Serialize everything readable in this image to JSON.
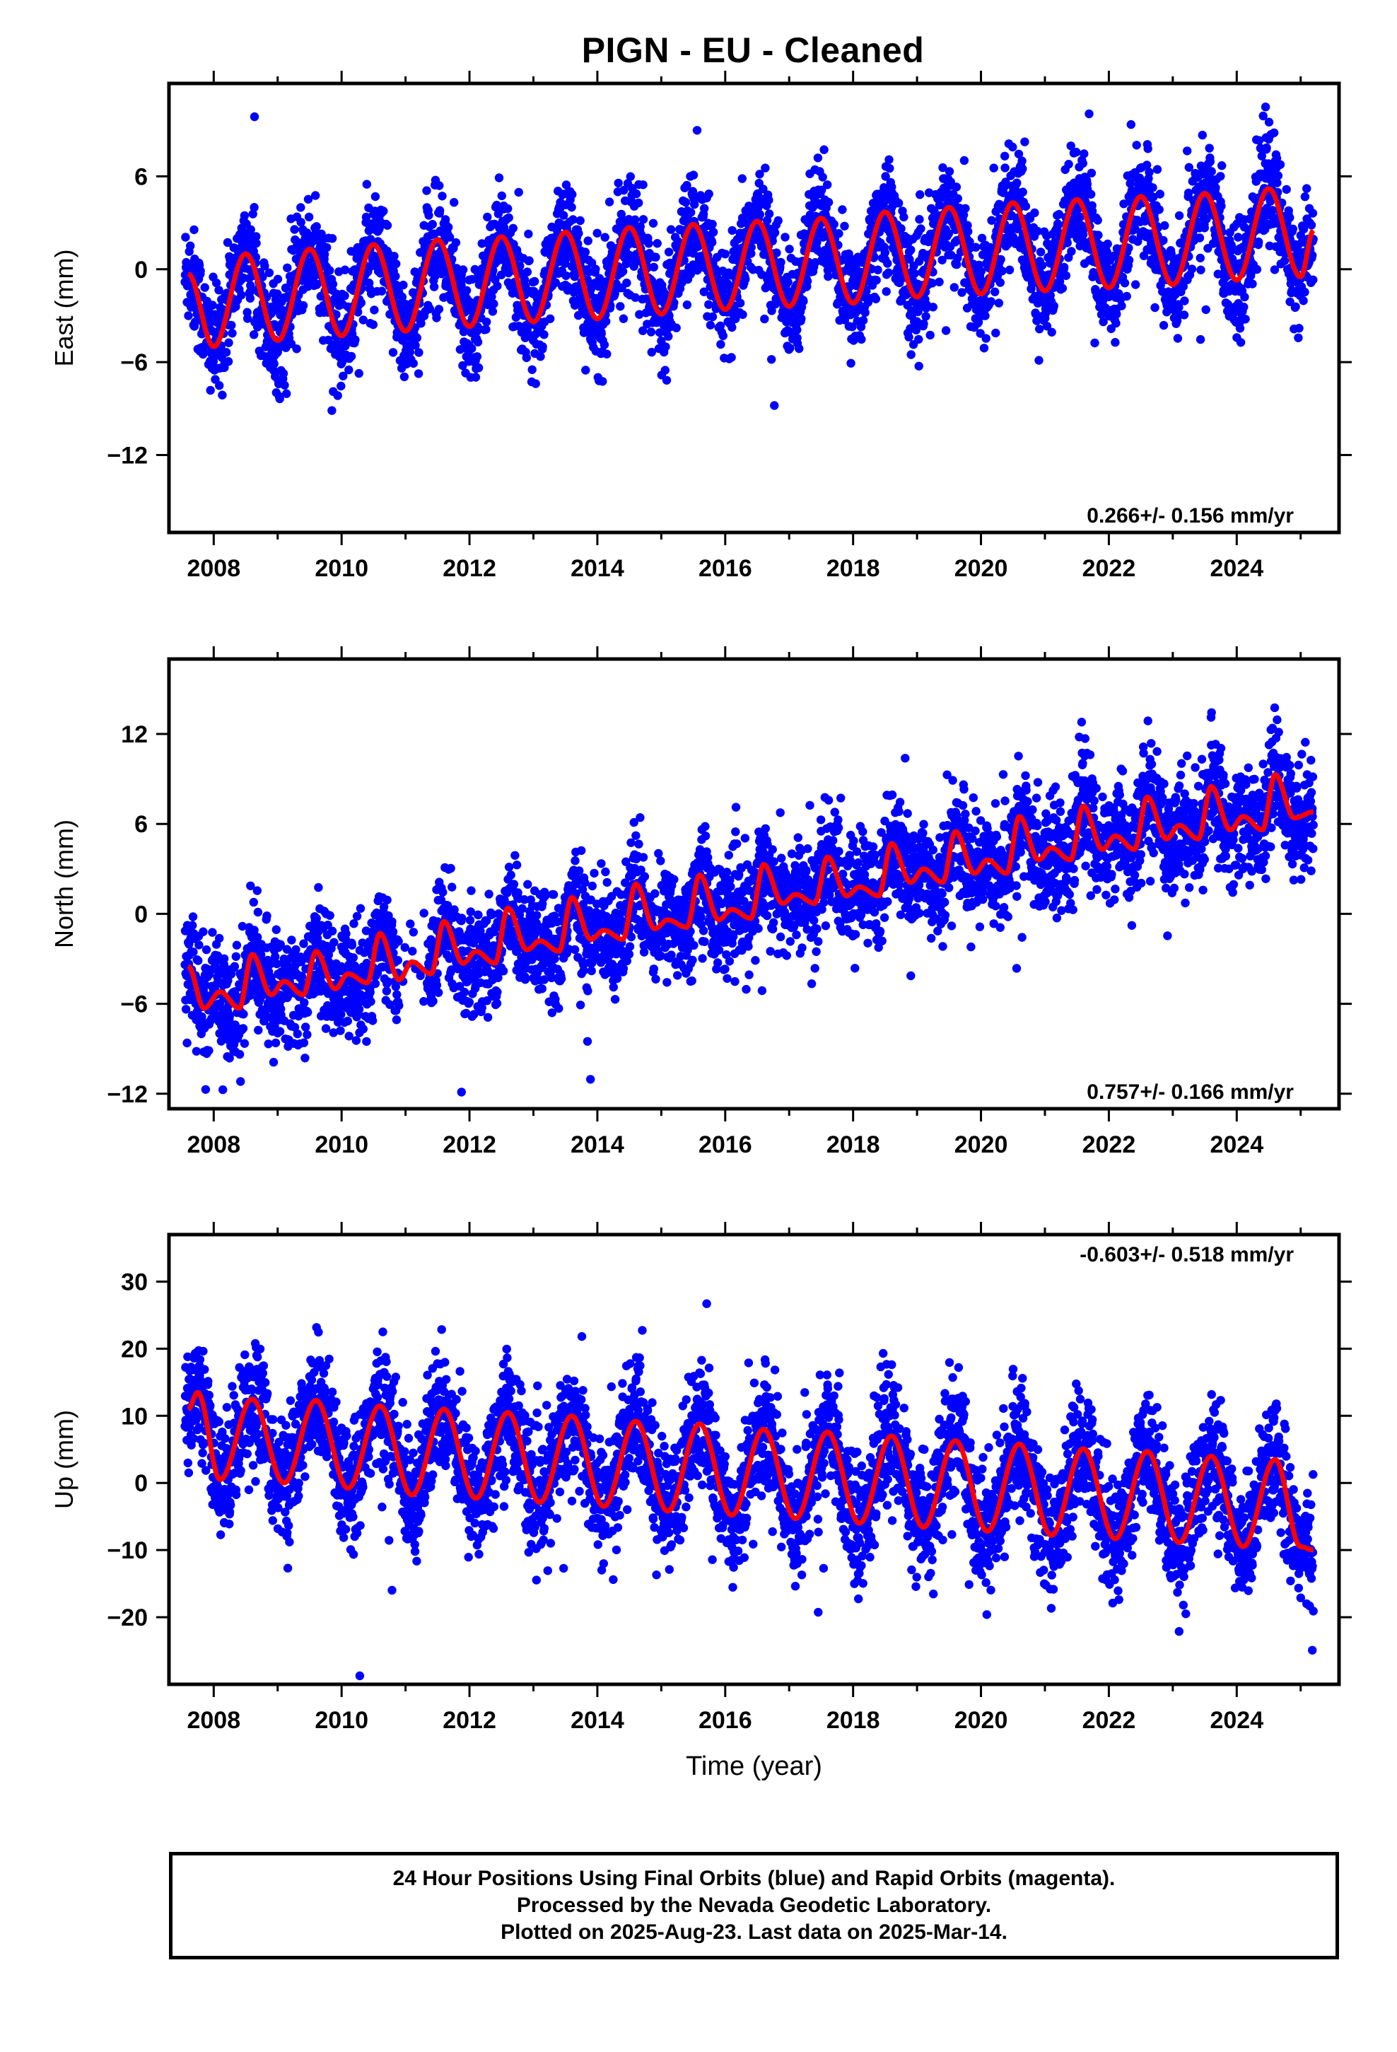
{
  "title": "PIGN  - EU - Cleaned",
  "colors": {
    "points": "#0000ff",
    "fit": "#ff0000",
    "frame": "#000000"
  },
  "chart_data": [
    {
      "type": "scatter",
      "ylabel": "East (mm)",
      "xlabel": "",
      "xlim": [
        2007.3,
        2025.6
      ],
      "ylim": [
        -17,
        12
      ],
      "xticks": [
        "2008",
        "2010",
        "2012",
        "2014",
        "2016",
        "2018",
        "2020",
        "2022",
        "2024"
      ],
      "yticks": [
        "6",
        "0",
        "−6",
        "−12"
      ],
      "ytick_values": [
        6,
        0,
        -6,
        -12
      ],
      "annotation": "0.266+/- 0.156 mm/yr",
      "annotation_pos": "bottom-right",
      "series": [
        {
          "label": "Final Orbits (blue)",
          "kind": "points",
          "x_range": [
            2007.55,
            2025.2
          ],
          "noise": 1.7
        },
        {
          "label": "fit",
          "kind": "line",
          "x": [
            2007.6,
            2008.0,
            2008.5,
            2009.0,
            2009.5,
            2010.0,
            2010.5,
            2011.0,
            2011.5,
            2012.0,
            2012.5,
            2013.0,
            2013.5,
            2014.0,
            2014.5,
            2015.0,
            2015.5,
            2016.0,
            2016.5,
            2017.0,
            2017.5,
            2018.0,
            2018.5,
            2019.0,
            2019.5,
            2020.0,
            2020.5,
            2021.0,
            2021.5,
            2022.0,
            2022.5,
            2023.0,
            2023.5,
            2024.0,
            2024.5,
            2025.0,
            2025.2
          ],
          "y": [
            -0.3,
            -5.0,
            1.0,
            -4.6,
            1.3,
            -4.3,
            1.6,
            -4.0,
            1.9,
            -3.7,
            2.1,
            -3.4,
            2.4,
            -3.2,
            2.7,
            -2.9,
            2.9,
            -2.6,
            3.1,
            -2.4,
            3.3,
            -2.2,
            3.7,
            -1.8,
            4.0,
            -1.6,
            4.3,
            -1.4,
            4.5,
            -1.2,
            4.7,
            -1.0,
            4.9,
            -0.7,
            5.2,
            -0.5,
            2.5
          ]
        }
      ]
    },
    {
      "type": "scatter",
      "ylabel": "North (mm)",
      "xlabel": "",
      "xlim": [
        2007.3,
        2025.6
      ],
      "ylim": [
        -13,
        17
      ],
      "xticks": [
        "2008",
        "2010",
        "2012",
        "2014",
        "2016",
        "2018",
        "2020",
        "2022",
        "2024"
      ],
      "yticks": [
        "12",
        "6",
        "0",
        "−6",
        "−12"
      ],
      "ytick_values": [
        12,
        6,
        0,
        -6,
        -12
      ],
      "annotation": "0.757+/- 0.166 mm/yr",
      "annotation_pos": "bottom-right",
      "series": [
        {
          "label": "Final Orbits (blue)",
          "kind": "points",
          "x_range": [
            2007.55,
            2025.2
          ],
          "noise": 1.8
        },
        {
          "label": "fit",
          "kind": "line",
          "x": [
            2007.6,
            2007.85,
            2008.1,
            2008.4,
            2008.6,
            2008.9,
            2009.1,
            2009.4,
            2009.6,
            2009.9,
            2010.1,
            2010.4,
            2010.6,
            2010.9,
            2011.1,
            2011.4,
            2011.6,
            2011.9,
            2012.1,
            2012.4,
            2012.6,
            2012.9,
            2013.1,
            2013.4,
            2013.6,
            2013.9,
            2014.1,
            2014.4,
            2014.6,
            2014.9,
            2015.1,
            2015.4,
            2015.6,
            2015.9,
            2016.1,
            2016.4,
            2016.6,
            2016.9,
            2017.1,
            2017.4,
            2017.6,
            2017.9,
            2018.1,
            2018.4,
            2018.6,
            2018.9,
            2019.1,
            2019.4,
            2019.6,
            2019.9,
            2020.1,
            2020.4,
            2020.6,
            2020.9,
            2021.1,
            2021.4,
            2021.6,
            2021.9,
            2022.1,
            2022.4,
            2022.6,
            2022.9,
            2023.1,
            2023.4,
            2023.6,
            2023.9,
            2024.1,
            2024.4,
            2024.6,
            2024.9,
            2025.2
          ],
          "y": [
            -3.5,
            -6.3,
            -5.2,
            -6.3,
            -2.7,
            -5.4,
            -4.5,
            -5.4,
            -2.5,
            -5.0,
            -4.0,
            -4.6,
            -1.3,
            -4.4,
            -3.2,
            -4.0,
            -0.5,
            -3.3,
            -2.5,
            -3.3,
            0.4,
            -2.4,
            -1.8,
            -2.5,
            1.1,
            -1.7,
            -1.1,
            -1.7,
            2.0,
            -1.0,
            -0.4,
            -0.9,
            2.6,
            -0.4,
            0.3,
            -0.3,
            3.3,
            0.7,
            1.3,
            0.7,
            3.8,
            1.2,
            1.8,
            1.2,
            4.7,
            2.1,
            3.0,
            2.1,
            5.5,
            2.7,
            3.6,
            2.7,
            6.5,
            3.6,
            4.4,
            3.6,
            7.2,
            4.3,
            5.2,
            4.3,
            7.8,
            5.0,
            5.9,
            5.0,
            8.5,
            5.6,
            6.5,
            5.6,
            9.3,
            6.4,
            6.8
          ]
        }
      ]
    },
    {
      "type": "scatter",
      "ylabel": "Up (mm)",
      "xlabel": "Time (year)",
      "xlim": [
        2007.3,
        2025.6
      ],
      "ylim": [
        -30,
        37
      ],
      "xticks": [
        "2008",
        "2010",
        "2012",
        "2014",
        "2016",
        "2018",
        "2020",
        "2022",
        "2024"
      ],
      "yticks": [
        "30",
        "20",
        "10",
        "0",
        "−10",
        "−20"
      ],
      "ytick_values": [
        30,
        20,
        10,
        0,
        -10,
        -20
      ],
      "annotation": "-0.603+/- 0.518 mm/yr",
      "annotation_pos": "top-right",
      "series": [
        {
          "label": "Final Orbits (blue)",
          "kind": "points",
          "x_range": [
            2007.55,
            2025.2
          ],
          "noise": 4.5
        },
        {
          "label": "fit",
          "kind": "line",
          "x": [
            2007.6,
            2007.75,
            2008.1,
            2008.6,
            2009.1,
            2009.6,
            2010.1,
            2010.6,
            2011.1,
            2011.6,
            2012.1,
            2012.6,
            2013.1,
            2013.6,
            2014.1,
            2014.6,
            2015.1,
            2015.6,
            2016.1,
            2016.6,
            2017.1,
            2017.6,
            2018.1,
            2018.6,
            2019.1,
            2019.6,
            2020.1,
            2020.6,
            2021.1,
            2021.6,
            2022.1,
            2022.6,
            2023.1,
            2023.6,
            2024.1,
            2024.6,
            2025.0,
            2025.2
          ],
          "y": [
            11,
            13.5,
            0.5,
            12.5,
            0,
            12.3,
            -0.8,
            11.5,
            -1.8,
            11.0,
            -2.3,
            10.5,
            -2.9,
            10.0,
            -3.5,
            9.2,
            -4.2,
            8.8,
            -4.8,
            8.0,
            -5.3,
            7.6,
            -6.0,
            7.0,
            -6.6,
            6.3,
            -7.2,
            5.8,
            -7.8,
            5.1,
            -8.3,
            4.7,
            -8.9,
            4.0,
            -9.5,
            3.5,
            -9.5,
            -10.0
          ]
        }
      ]
    }
  ],
  "footer": {
    "line1": "24 Hour Positions Using Final Orbits (blue) and Rapid Orbits (magenta).",
    "line2": "Processed by the Nevada Geodetic Laboratory.",
    "line3": "Plotted on 2025-Aug-23. Last data on 2025-Mar-14."
  }
}
